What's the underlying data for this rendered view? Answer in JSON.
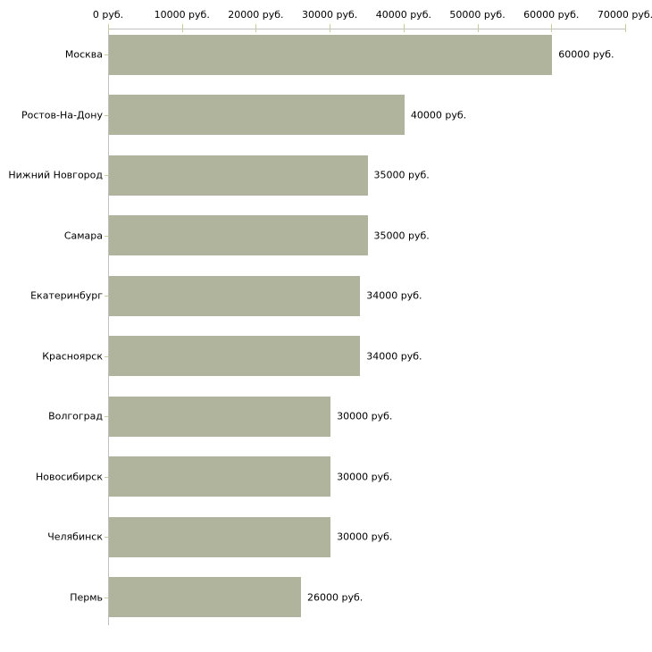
{
  "chart_data": {
    "type": "bar",
    "orientation": "horizontal",
    "title": "",
    "xlabel": "",
    "ylabel": "",
    "xlim": [
      0,
      70000
    ],
    "grid": false,
    "legend": "none",
    "axis_position": "top",
    "categories": [
      "Москва",
      "Ростов-На-Дону",
      "Нижний Новгород",
      "Самара",
      "Екатеринбург",
      "Красноярск",
      "Волгоград",
      "Новосибирск",
      "Челябинск",
      "Пермь"
    ],
    "values": [
      60000,
      40000,
      35000,
      35000,
      34000,
      34000,
      30000,
      30000,
      30000,
      26000
    ],
    "bar_value_labels": [
      "60000 руб.",
      "40000 руб.",
      "35000 руб.",
      "35000 руб.",
      "34000 руб.",
      "34000 руб.",
      "30000 руб.",
      "30000 руб.",
      "30000 руб.",
      "26000 руб."
    ],
    "x_ticks": [
      {
        "value": 0,
        "label": "0 руб."
      },
      {
        "value": 10000,
        "label": "10000 руб."
      },
      {
        "value": 20000,
        "label": "20000 руб."
      },
      {
        "value": 30000,
        "label": "30000 руб."
      },
      {
        "value": 40000,
        "label": "40000 руб."
      },
      {
        "value": 50000,
        "label": "50000 руб."
      },
      {
        "value": 60000,
        "label": "60000 руб."
      },
      {
        "value": 70000,
        "label": "70000 руб."
      }
    ],
    "colors": {
      "bar": "#b0b49c",
      "axis_line": "#c0c0c0",
      "tick_mark": "#c9cb9c",
      "text": "#000000",
      "background": "#ffffff"
    }
  }
}
